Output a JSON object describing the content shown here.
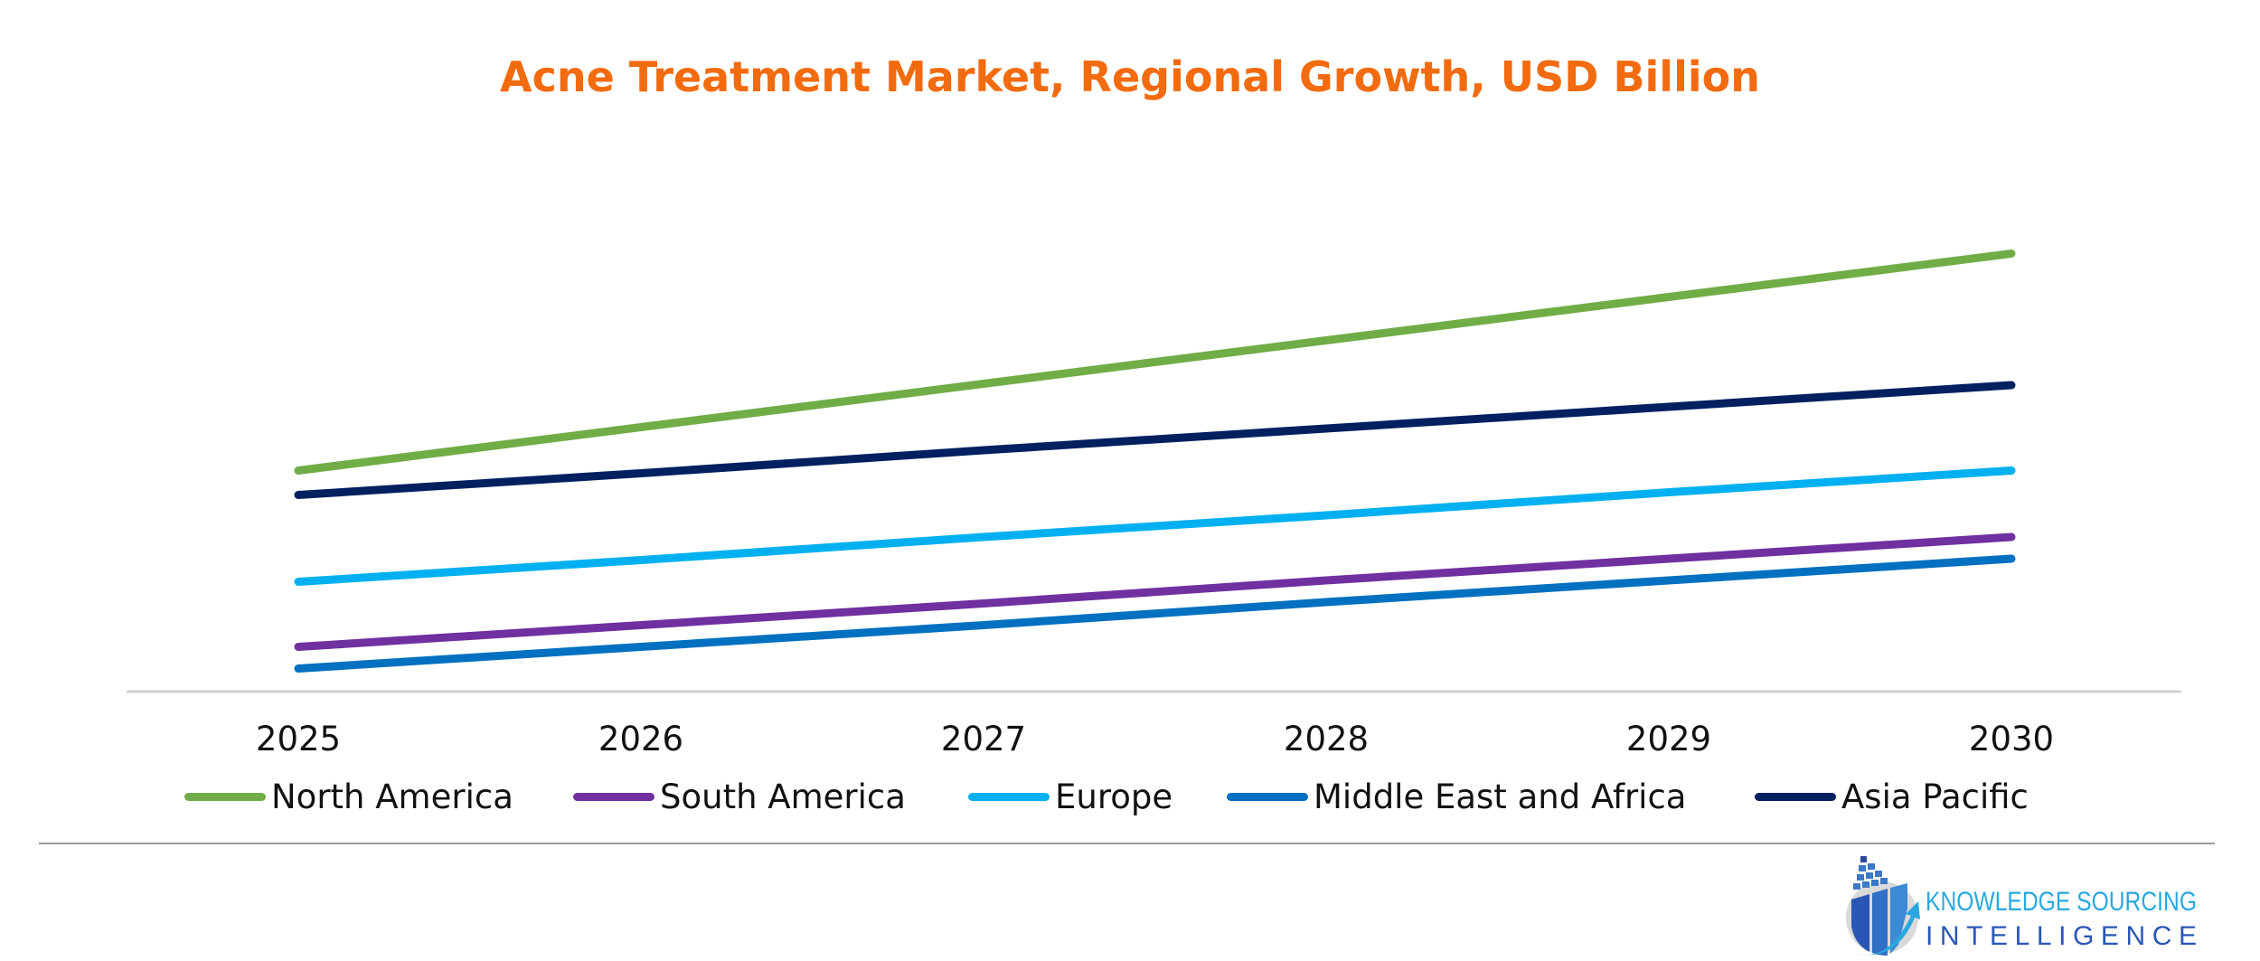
{
  "chart_data": {
    "type": "line",
    "title": "Acne Treatment Market, Regional Growth, USD Billion",
    "xlabel": "",
    "ylabel": "",
    "x": [
      "2025",
      "2026",
      "2027",
      "2028",
      "2029",
      "2030"
    ],
    "ylim": [
      0,
      40
    ],
    "grid": false,
    "y_axis_shown": false,
    "legend_placement": "bottom",
    "series": [
      {
        "name": "North America",
        "color": "#70ad47",
        "values": [
          16.3,
          19.5,
          22.7,
          25.9,
          29.1,
          32.3
        ]
      },
      {
        "name": "South America",
        "color": "#7030a0",
        "values": [
          3.3,
          4.9,
          6.5,
          8.2,
          9.8,
          11.4
        ]
      },
      {
        "name": "Europe",
        "color": "#00b0f0",
        "values": [
          8.1,
          9.7,
          11.4,
          13.0,
          14.7,
          16.3
        ]
      },
      {
        "name": "Middle East and Africa",
        "color": "#0070c0",
        "values": [
          1.7,
          3.3,
          4.9,
          6.6,
          8.2,
          9.8
        ]
      },
      {
        "name": "Asia Pacific",
        "color": "#002060",
        "values": [
          14.5,
          16.1,
          17.8,
          19.4,
          21.0,
          22.6
        ]
      }
    ]
  },
  "branding": {
    "logo_line1": "KNOWLEDGE SOURCING",
    "logo_line2": "INTELLIGENCE"
  }
}
